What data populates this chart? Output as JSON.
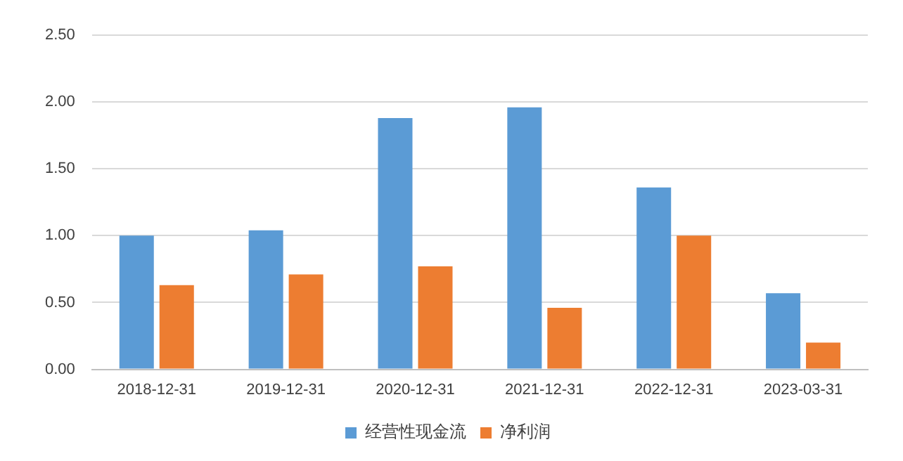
{
  "chart_data": {
    "type": "bar",
    "categories": [
      "2018-12-31",
      "2019-12-31",
      "2020-12-31",
      "2021-12-31",
      "2022-12-31",
      "2023-03-31"
    ],
    "series": [
      {
        "name": "经营性现金流",
        "color": "#5b9bd5",
        "values": [
          1.0,
          1.04,
          1.88,
          1.96,
          1.36,
          0.57
        ]
      },
      {
        "name": "净利润",
        "color": "#ed7d31",
        "values": [
          0.63,
          0.71,
          0.77,
          0.46,
          1.0,
          0.2
        ]
      }
    ],
    "ylim": [
      0,
      2.5
    ],
    "yticks": [
      {
        "value": 0,
        "label": "0.00"
      },
      {
        "value": 0.5,
        "label": "0.50"
      },
      {
        "value": 1,
        "label": "1.00"
      },
      {
        "value": 1.5,
        "label": "1.50"
      },
      {
        "value": 2,
        "label": "2.00"
      },
      {
        "value": 2.5,
        "label": "2.50"
      }
    ],
    "grid": "y",
    "legend": "bottom"
  }
}
